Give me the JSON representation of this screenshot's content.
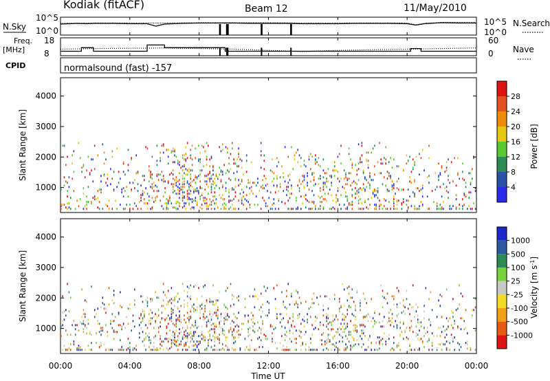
{
  "header": {
    "site": "Kodiak (fitACF)",
    "beam": "Beam 12",
    "date": "11/May/2010"
  },
  "chart_data": [
    {
      "type": "line",
      "panel": "noise",
      "left_label": "N.Sky",
      "right_label": "N.Search",
      "left_ticks": [
        "10^5",
        "10^0"
      ],
      "right_ticks": [
        "10^5",
        "10^0"
      ],
      "series": [
        {
          "name": "N.Sky",
          "style": "solid",
          "x": [
            0,
            1,
            1.5,
            2,
            3,
            4,
            5,
            5.5,
            6,
            7,
            8,
            9,
            10,
            11,
            12,
            13,
            14,
            15,
            16,
            17,
            18,
            19,
            20,
            20.5,
            21,
            22,
            23,
            24
          ],
          "y": [
            3.2,
            3.4,
            3.3,
            3.4,
            3.4,
            3.3,
            3.3,
            2.6,
            3.2,
            3.4,
            3.5,
            3.5,
            3.5,
            3.4,
            3.4,
            3.4,
            3.3,
            3.3,
            3.3,
            3.4,
            3.4,
            3.4,
            3.3,
            2.9,
            3.3,
            3.6,
            3.5,
            3.5
          ]
        },
        {
          "name": "N.Search",
          "style": "dotted",
          "x": [
            0,
            2,
            4,
            6,
            8,
            10,
            12,
            14,
            16,
            18,
            20,
            20.5,
            21,
            22,
            24
          ],
          "y": [
            3.4,
            3.5,
            3.5,
            3.5,
            3.6,
            3.6,
            3.6,
            3.5,
            3.5,
            3.5,
            3.5,
            3.0,
            3.4,
            3.7,
            3.7
          ]
        }
      ],
      "spikes_x": [
        9.2,
        9.6,
        9.65,
        11.6,
        13.3
      ]
    },
    {
      "type": "line",
      "panel": "frequency",
      "left_label": "Freq. [MHz]",
      "right_label": "Nave",
      "left_ticks": [
        "18",
        "8"
      ],
      "right_ticks": [
        "60",
        "0"
      ],
      "series": [
        {
          "name": "Freq.",
          "style": "solid",
          "x": [
            0,
            1.2,
            1.2,
            1.9,
            1.9,
            5.0,
            5.0,
            6.0,
            6.0,
            9.5,
            9.5,
            20.2,
            20.2,
            20.8,
            20.8,
            24
          ],
          "y": [
            10.5,
            10.5,
            12.5,
            12.5,
            10.5,
            10.5,
            14.0,
            14.0,
            12.5,
            12.5,
            10.5,
            10.5,
            12.0,
            12.0,
            10.5,
            10.5
          ]
        },
        {
          "name": "Nave",
          "style": "dotted",
          "x": [
            0,
            2,
            4,
            6,
            8,
            10,
            12,
            14,
            16,
            18,
            20,
            22,
            24
          ],
          "y": [
            22,
            24,
            25,
            26,
            24,
            22,
            18,
            14,
            18,
            20,
            22,
            24,
            26
          ]
        }
      ]
    },
    {
      "type": "text",
      "panel": "cpid",
      "left_label": "CPID",
      "text": "normalsound (fast) -157"
    },
    {
      "type": "heatmap",
      "panel": "power",
      "ylabel": "Slant Range [km]",
      "ylim": [
        180,
        4600
      ],
      "yticks": [
        1000,
        2000,
        3000,
        4000
      ],
      "xlim": [
        0,
        24
      ],
      "colorbar": {
        "label": "Power [dB]",
        "ticks": [
          4,
          8,
          12,
          16,
          20,
          24,
          28
        ],
        "colors": [
          "#2a2ae8",
          "#2c4fa8",
          "#2e8b57",
          "#5ac832",
          "#e6c814",
          "#f08c0a",
          "#e6501e",
          "#dc1414"
        ]
      }
    },
    {
      "type": "heatmap",
      "panel": "velocity",
      "ylabel": "Slant Range [km]",
      "ylim": [
        180,
        4600
      ],
      "yticks": [
        1000,
        2000,
        3000,
        4000
      ],
      "xlim": [
        0,
        24
      ],
      "xticks": [
        "00:00",
        "04:00",
        "08:00",
        "12:00",
        "16:00",
        "20:00",
        "00:00"
      ],
      "xlabel": "Time UT",
      "colorbar": {
        "label": "Velocity [m s^-1]",
        "ticks": [
          "1000",
          "500",
          "100",
          "25",
          "-25",
          "-100",
          "-500",
          "-1000"
        ],
        "colors": [
          "#1e28c8",
          "#2c5aa0",
          "#2e8b57",
          "#78d23c",
          "#c8c8c8",
          "#f0dc28",
          "#f0a014",
          "#e65a14",
          "#dc1414"
        ]
      }
    }
  ]
}
